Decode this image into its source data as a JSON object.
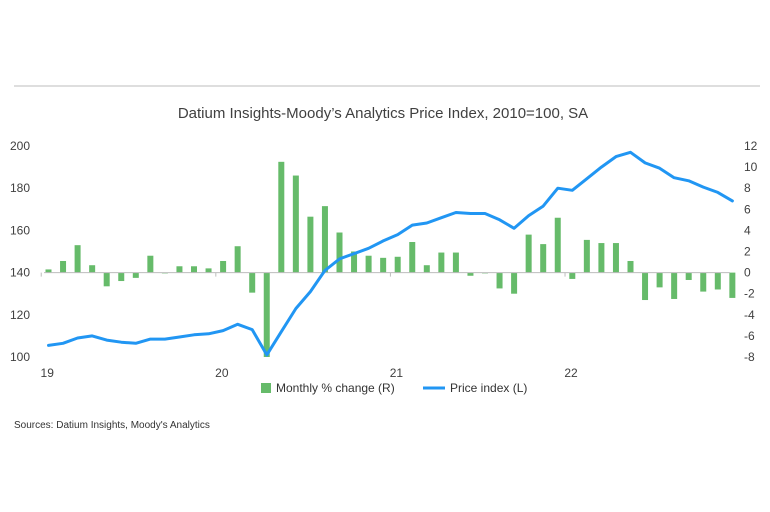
{
  "chart_data": {
    "type": "bar+line",
    "title": "Datium Insights-Moody’s Analytics Price Index, 2010=100, SA",
    "source": "Sources: Datium Insights, Moody's Analytics",
    "x_tick_labels": [
      "19",
      "20",
      "21",
      "22"
    ],
    "x_tick_months": [
      0,
      12,
      24,
      36
    ],
    "left_axis": {
      "min": 100,
      "max": 200,
      "ticks": [
        100,
        120,
        140,
        160,
        180,
        200
      ]
    },
    "right_axis": {
      "min": -8,
      "max": 12,
      "ticks": [
        -8,
        -6,
        -4,
        -2,
        0,
        2,
        4,
        6,
        8,
        10,
        12
      ],
      "tick_labels": [
        "-8",
        "-6",
        "-4",
        "-2",
        "0",
        "2",
        "4",
        "6",
        "8",
        "10",
        "12"
      ]
    },
    "series": [
      {
        "name": "Monthly % change (R)",
        "type": "bar",
        "axis": "right",
        "color": "#66bb6a",
        "values": [
          0.3,
          1.1,
          2.6,
          0.7,
          -1.3,
          -0.8,
          -0.5,
          1.6,
          0.0,
          0.6,
          0.6,
          0.4,
          1.1,
          2.5,
          -1.9,
          -8.0,
          10.5,
          9.2,
          5.3,
          6.3,
          3.8,
          2.0,
          1.6,
          1.4,
          1.5,
          2.9,
          0.7,
          1.9,
          1.9,
          -0.3,
          0.0,
          -1.5,
          -2.0,
          3.6,
          2.7,
          5.2,
          -0.6,
          3.1,
          2.8,
          2.8,
          1.1,
          -2.6,
          -1.4,
          -2.5,
          -0.7,
          -1.8,
          -1.6,
          -2.4
        ]
      },
      {
        "name": "Price index (L)",
        "type": "line",
        "axis": "left",
        "color": "#2196f3",
        "values": [
          105.5,
          106.5,
          109.0,
          110.0,
          108.0,
          107.0,
          106.5,
          108.5,
          108.5,
          109.5,
          110.5,
          111.0,
          112.5,
          115.5,
          113.0,
          101.0,
          112.0,
          123.0,
          131.0,
          141.0,
          146.5,
          149.0,
          151.5,
          155.0,
          158.0,
          162.5,
          163.5,
          166.0,
          168.5,
          168.0,
          168.0,
          165.0,
          161.0,
          167.0,
          171.5,
          180.0,
          179.0,
          184.5,
          190.0,
          195.0,
          197.0,
          192.0,
          189.5,
          185.0,
          183.5,
          180.5,
          178.0,
          174.0
        ]
      }
    ],
    "legend_position": "bottom"
  }
}
